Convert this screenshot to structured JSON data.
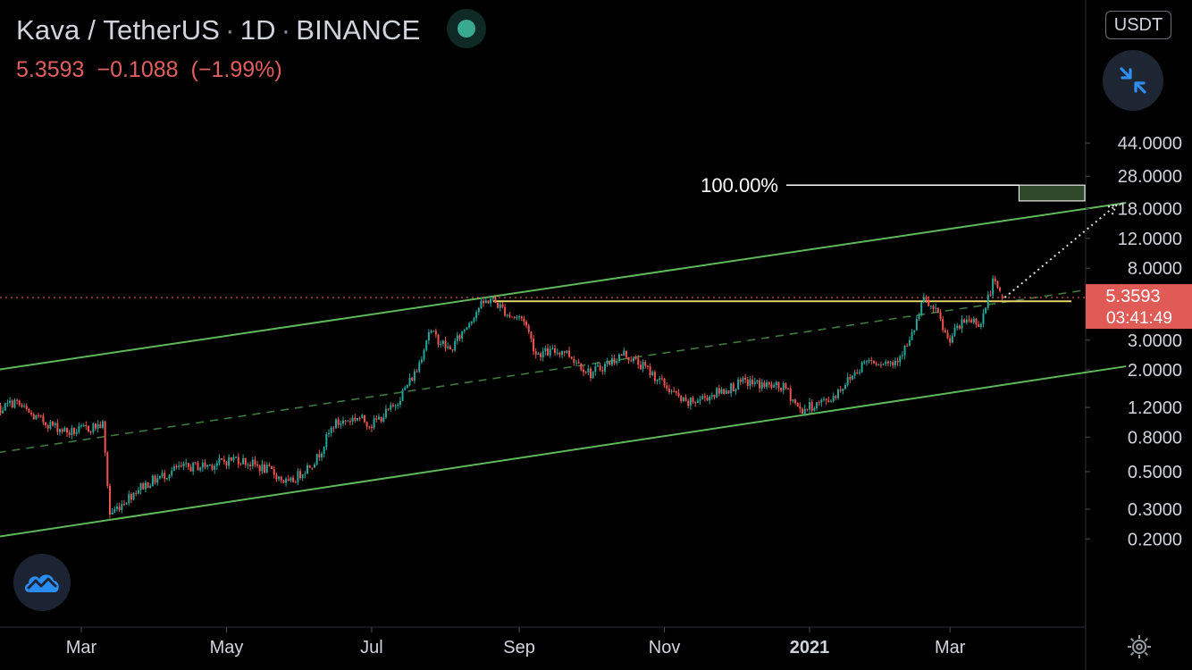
{
  "header": {
    "symbol": "Kava / TetherUS",
    "interval": "1D",
    "exchange": "BINANCE",
    "price": "5.3593",
    "change": "−0.1088",
    "change_pct": "(−1.99%)",
    "status_color": "#3aa992"
  },
  "unit_label": "USDT",
  "price_badge": {
    "price": "5.3593",
    "countdown": "03:41:49"
  },
  "target_label": "100.00%",
  "icons": {
    "collapse": "collapse-arrows-icon",
    "brand": "tradingview-cloud-icon",
    "settings": "gear-icon"
  },
  "colors": {
    "bull": "#26a69a",
    "bear": "#ef5350",
    "channel": "#5fb85a",
    "midline": "#3f7a3f",
    "resistance": "#e6d36a",
    "last_price": "#e05a56",
    "target_box": "#2f4a2a"
  },
  "chart_data": {
    "type": "candlestick",
    "title": "Kava / TetherUS · 1D · BINANCE",
    "y_scale": "log",
    "y_ticks": [
      {
        "label": "44.0000",
        "value": 44
      },
      {
        "label": "28.0000",
        "value": 28
      },
      {
        "label": "18.0000",
        "value": 18
      },
      {
        "label": "12.0000",
        "value": 12
      },
      {
        "label": "8.0000",
        "value": 8
      },
      {
        "label": "3.0000",
        "value": 3
      },
      {
        "label": "2.0000",
        "value": 2
      },
      {
        "label": "1.2000",
        "value": 1.2
      },
      {
        "label": "0.8000",
        "value": 0.8
      },
      {
        "label": "0.5000",
        "value": 0.5
      },
      {
        "label": "0.3000",
        "value": 0.3
      },
      {
        "label": "0.2000",
        "value": 0.2
      }
    ],
    "x_ticks": [
      {
        "label": "Mar",
        "date": "2020-03-01"
      },
      {
        "label": "May",
        "date": "2020-05-01"
      },
      {
        "label": "Jul",
        "date": "2020-07-01"
      },
      {
        "label": "Sep",
        "date": "2020-09-01"
      },
      {
        "label": "Nov",
        "date": "2020-11-01"
      },
      {
        "label": "2021",
        "date": "2021-01-01"
      },
      {
        "label": "Mar",
        "date": "2021-03-01"
      }
    ],
    "price_path": [
      [
        "2020-01-20",
        1.05
      ],
      [
        "2020-02-02",
        1.3
      ],
      [
        "2020-02-10",
        1.05
      ],
      [
        "2020-02-25",
        0.85
      ],
      [
        "2020-03-10",
        0.95
      ],
      [
        "2020-03-13",
        0.28
      ],
      [
        "2020-03-25",
        0.4
      ],
      [
        "2020-04-10",
        0.52
      ],
      [
        "2020-04-25",
        0.55
      ],
      [
        "2020-05-05",
        0.6
      ],
      [
        "2020-05-20",
        0.5
      ],
      [
        "2020-05-27",
        0.42
      ],
      [
        "2020-06-08",
        0.6
      ],
      [
        "2020-06-15",
        0.95
      ],
      [
        "2020-06-25",
        1.05
      ],
      [
        "2020-07-01",
        0.95
      ],
      [
        "2020-07-10",
        1.2
      ],
      [
        "2020-07-20",
        2.0
      ],
      [
        "2020-07-25",
        3.4
      ],
      [
        "2020-08-03",
        2.6
      ],
      [
        "2020-08-15",
        4.7
      ],
      [
        "2020-08-20",
        5.3
      ],
      [
        "2020-08-28",
        4.2
      ],
      [
        "2020-09-03",
        4.0
      ],
      [
        "2020-09-08",
        2.5
      ],
      [
        "2020-09-20",
        2.6
      ],
      [
        "2020-10-01",
        1.9
      ],
      [
        "2020-10-15",
        2.5
      ],
      [
        "2020-10-25",
        2.0
      ],
      [
        "2020-11-10",
        1.25
      ],
      [
        "2020-11-25",
        1.5
      ],
      [
        "2020-12-05",
        1.7
      ],
      [
        "2020-12-22",
        1.55
      ],
      [
        "2020-12-28",
        1.15
      ],
      [
        "2021-01-10",
        1.35
      ],
      [
        "2021-01-25",
        2.3
      ],
      [
        "2021-02-05",
        2.2
      ],
      [
        "2021-02-12",
        2.9
      ],
      [
        "2021-02-18",
        5.2
      ],
      [
        "2021-02-24",
        4.2
      ],
      [
        "2021-02-28",
        3.0
      ],
      [
        "2021-03-08",
        4.0
      ],
      [
        "2021-03-14",
        3.8
      ],
      [
        "2021-03-19",
        6.6
      ],
      [
        "2021-03-23",
        5.36
      ]
    ],
    "last": {
      "close": 5.3593,
      "change": -0.1088,
      "change_pct": -1.99
    },
    "channel_upper": [
      [
        "2020-01-20",
        1.95
      ],
      [
        "2021-05-14",
        19.5
      ]
    ],
    "channel_lower": [
      [
        "2020-01-20",
        0.2
      ],
      [
        "2021-05-14",
        2.1
      ]
    ],
    "channel_mid": [
      [
        "2020-01-20",
        0.63
      ],
      [
        "2021-05-14",
        6.45
      ]
    ],
    "resistance": {
      "value": 5.35,
      "from": "2020-08-21",
      "to": "2021-04-21"
    },
    "last_price_line": 5.3593,
    "target": {
      "label": "100.00%",
      "low": 20.0,
      "high": 24.8,
      "from": "2021-03-30",
      "to": "2021-05-14"
    },
    "projection": [
      [
        "2021-03-24",
        5.36
      ],
      [
        "2021-05-10",
        19.0
      ]
    ]
  }
}
